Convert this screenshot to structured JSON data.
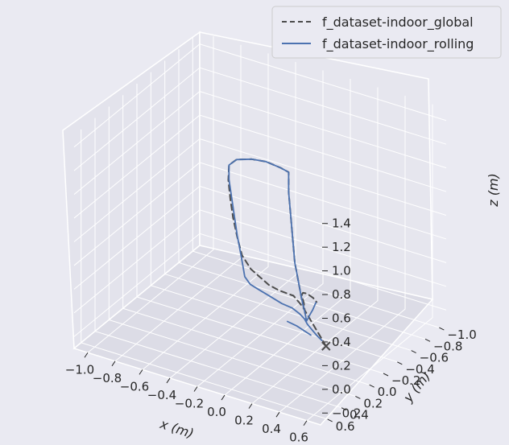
{
  "chart_data": {
    "type": "line",
    "projection": "3d",
    "xlabel": "x (m)",
    "ylabel": "y (m)",
    "zlabel": "z (m)",
    "x_ticks": [
      "−1.0",
      "−0.8",
      "−0.6",
      "−0.4",
      "−0.2",
      "0.0",
      "0.2",
      "0.4",
      "0.6"
    ],
    "y_ticks": [
      "−1.0",
      "−0.8",
      "−0.6",
      "−0.4",
      "−0.2",
      "0.0",
      "0.2",
      "0.4",
      "0.6"
    ],
    "z_ticks": [
      "−0.2",
      "0.0",
      "0.2",
      "0.4",
      "0.6",
      "0.8",
      "1.0",
      "1.2",
      "1.4"
    ],
    "xlim": [
      -1.1,
      0.7
    ],
    "ylim": [
      -1.1,
      0.7
    ],
    "zlim": [
      -0.3,
      1.5
    ],
    "grid": true,
    "legend_position": "top-right",
    "series": [
      {
        "name": "f_dataset-indoor_global",
        "style": "dashed",
        "color": "#4c4c4c",
        "points": [
          [
            0.22,
            -0.32,
            -0.3
          ],
          [
            0.2,
            -0.24,
            -0.15
          ],
          [
            0.18,
            -0.16,
            0.0
          ],
          [
            0.16,
            -0.1,
            0.12
          ],
          [
            0.12,
            -0.05,
            0.22
          ],
          [
            0.04,
            0.0,
            0.26
          ],
          [
            -0.02,
            0.03,
            0.3
          ],
          [
            -0.08,
            0.04,
            0.35
          ],
          [
            -0.14,
            0.05,
            0.4
          ],
          [
            -0.2,
            0.06,
            0.5
          ],
          [
            -0.23,
            0.07,
            0.65
          ],
          [
            -0.26,
            0.07,
            0.8
          ],
          [
            -0.28,
            0.07,
            0.95
          ],
          [
            -0.3,
            0.06,
            1.1
          ],
          [
            -0.3,
            0.05,
            1.22
          ],
          [
            -0.25,
            0.04,
            1.28
          ],
          [
            -0.15,
            0.02,
            1.31
          ],
          [
            -0.05,
            0.01,
            1.32
          ],
          [
            0.05,
            0.0,
            1.3
          ],
          [
            0.1,
            -0.02,
            1.27
          ],
          [
            0.1,
            -0.02,
            1.1
          ],
          [
            0.11,
            -0.03,
            0.9
          ],
          [
            0.12,
            -0.04,
            0.7
          ],
          [
            0.13,
            -0.05,
            0.5
          ],
          [
            0.15,
            -0.06,
            0.35
          ],
          [
            0.17,
            -0.07,
            0.2
          ],
          [
            0.19,
            -0.08,
            0.08
          ],
          [
            0.19,
            -0.06,
            0.18
          ],
          [
            0.19,
            -0.03,
            0.26
          ],
          [
            0.22,
            0.01,
            0.31
          ],
          [
            0.27,
            0.05,
            0.34
          ],
          [
            0.33,
            0.08,
            0.34
          ],
          [
            0.36,
            0.09,
            0.32
          ]
        ]
      },
      {
        "name": "f_dataset-indoor_rolling",
        "style": "solid",
        "color": "#4c72b0",
        "points": [
          [
            0.2,
            -0.3,
            -0.25
          ],
          [
            0.19,
            -0.26,
            -0.2
          ],
          [
            0.18,
            -0.2,
            -0.12
          ],
          [
            0.17,
            -0.15,
            -0.05
          ],
          [
            0.16,
            -0.13,
            0.0
          ],
          [
            0.14,
            -0.1,
            0.05
          ],
          [
            0.1,
            -0.07,
            0.1
          ],
          [
            0.04,
            -0.04,
            0.13
          ],
          [
            -0.03,
            -0.01,
            0.18
          ],
          [
            -0.1,
            0.01,
            0.22
          ],
          [
            -0.16,
            0.02,
            0.25
          ],
          [
            -0.2,
            0.02,
            0.3
          ],
          [
            -0.21,
            0.03,
            0.4
          ],
          [
            -0.22,
            0.04,
            0.5
          ],
          [
            -0.24,
            0.05,
            0.65
          ],
          [
            -0.26,
            0.05,
            0.8
          ],
          [
            -0.28,
            0.05,
            0.95
          ],
          [
            -0.3,
            0.05,
            1.1
          ],
          [
            -0.3,
            0.05,
            1.22
          ],
          [
            -0.25,
            0.04,
            1.28
          ],
          [
            -0.15,
            0.02,
            1.31
          ],
          [
            -0.05,
            0.01,
            1.32
          ],
          [
            0.05,
            0.0,
            1.3
          ],
          [
            0.1,
            -0.02,
            1.27
          ],
          [
            0.1,
            -0.02,
            1.1
          ],
          [
            0.11,
            -0.03,
            0.9
          ],
          [
            0.12,
            -0.04,
            0.7
          ],
          [
            0.13,
            -0.05,
            0.5
          ],
          [
            0.15,
            -0.06,
            0.35
          ],
          [
            0.17,
            -0.07,
            0.2
          ],
          [
            0.19,
            -0.08,
            0.08
          ],
          [
            0.2,
            -0.08,
            0.02
          ],
          [
            0.28,
            0.02,
            0.16
          ],
          [
            0.33,
            0.09,
            0.24
          ],
          [
            0.36,
            0.1,
            0.32
          ]
        ]
      },
      {
        "name": "",
        "style": "solid",
        "color": "#4c72b0",
        "points": [
          [
            0.16,
            -0.22,
            -0.18
          ],
          [
            0.09,
            -0.16,
            -0.1
          ],
          [
            0.04,
            -0.12,
            -0.06
          ]
        ]
      }
    ]
  },
  "legend": {
    "items": [
      {
        "label": "f_dataset-indoor_global"
      },
      {
        "label": "f_dataset-indoor_rolling"
      }
    ]
  }
}
